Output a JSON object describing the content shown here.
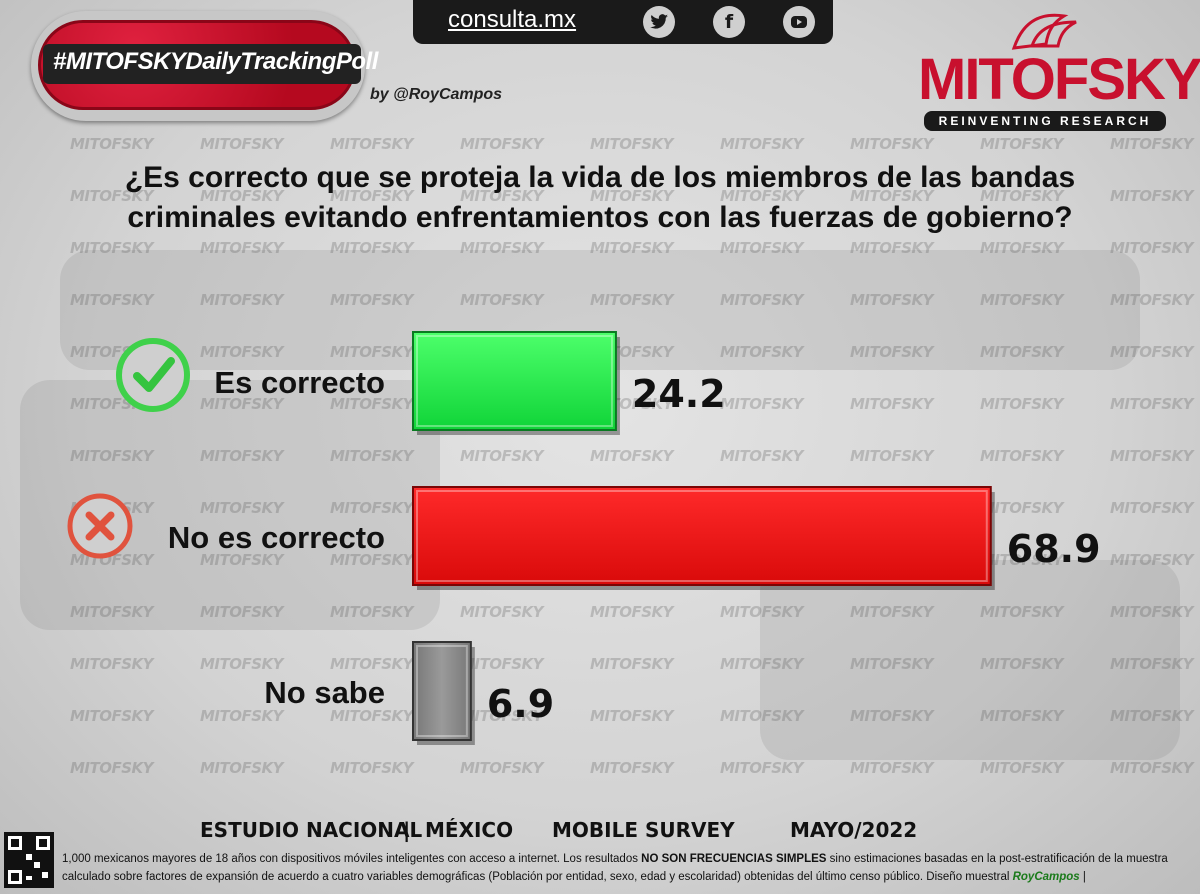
{
  "header": {
    "hashtag": "#MITOFSKYDailyTrackingPoll",
    "byline": "by @RoyCampos",
    "site": "consulta.mx",
    "social_icons": [
      "twitter-icon",
      "facebook-icon",
      "youtube-icon"
    ]
  },
  "logo": {
    "name": "MITOFSKY",
    "tagline": "REINVENTING RESEARCH",
    "watermark": "MITOFSKY"
  },
  "question": "¿Es correcto que se proteja la vida de los miembros de las bandas criminales evitando enfrentamientos con las fuerzas de gobierno?",
  "chart_data": {
    "type": "bar",
    "orientation": "horizontal",
    "categories": [
      "Es correcto",
      "No es correcto",
      "No sabe"
    ],
    "values": [
      24.2,
      68.9,
      6.9
    ],
    "value_labels": [
      "24.2",
      "68.9",
      "6.9"
    ],
    "colors": [
      "#22f04a",
      "#ee1111",
      "#8a8a8a"
    ],
    "icons": [
      "check-circle-icon",
      "x-circle-icon",
      ""
    ],
    "xlim": [
      0,
      70
    ],
    "grid": false
  },
  "footer": {
    "study": "ESTUDIO NACIONAL",
    "separator": "|",
    "country": "MÉXICO",
    "method": "MOBILE SURVEY",
    "date": "MAYO/2022",
    "note_part1": "1,000 mexicanos mayores de 18 años con dispositivos móviles inteligentes con acceso a internet. Los resultados ",
    "note_bold": "NO SON FRECUENCIAS SIMPLES",
    "note_part2": " sino estimaciones basadas en la post-estratificación de la muestra calculado sobre factores de expansión de acuerdo a cuatro variables demográficas (Población por entidad, sexo, edad y escolaridad) obtenidas del último censo público. Diseño muestral ",
    "note_signature": "RoyCampos",
    "note_end": " |"
  }
}
